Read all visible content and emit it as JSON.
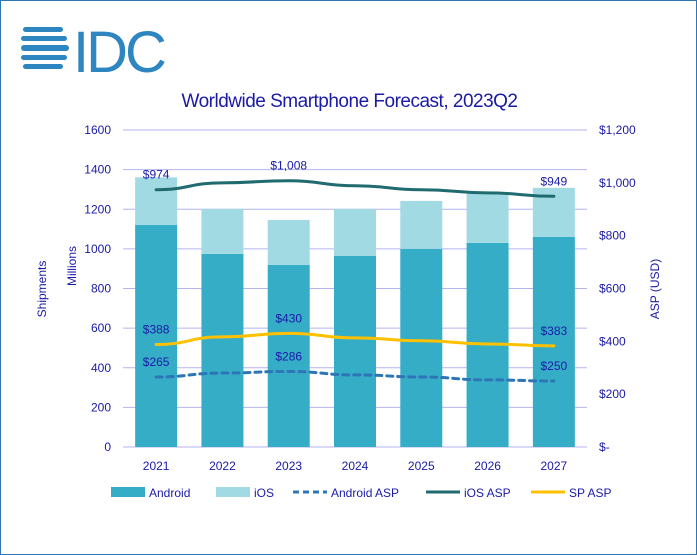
{
  "logo_text": "IDC",
  "chart_data": {
    "type": "bar",
    "title": "Worldwide Smartphone Forecast, 2023Q2",
    "categories": [
      "2021",
      "2022",
      "2023",
      "2024",
      "2025",
      "2026",
      "2027"
    ],
    "ylabel_left": "Shipments",
    "ylabel_left_sub": "Millions",
    "ylabel_right": "ASP (USD)",
    "ylim_left": [
      0,
      1600
    ],
    "yticks_left": [
      "0",
      "200",
      "400",
      "600",
      "800",
      "1000",
      "1200",
      "1400",
      "1600"
    ],
    "ylim_right": [
      0,
      1200
    ],
    "yticks_right": [
      "$-",
      "$200",
      "$400",
      "$600",
      "$800",
      "$1,000",
      "$1,200"
    ],
    "grid": true,
    "legend_placement": "bottom",
    "bar_series": [
      {
        "name": "Android",
        "color": "#36adc7",
        "values": [
          1121,
          975,
          919,
          965,
          1000,
          1030,
          1061
        ]
      },
      {
        "name": "iOS",
        "color": "#a2dae4",
        "values": [
          240,
          227,
          227,
          237,
          242,
          248,
          247
        ]
      }
    ],
    "line_series": [
      {
        "name": "Android ASP",
        "color": "#2e75b6",
        "dashed": true,
        "values": [
          265,
          280,
          286,
          273,
          265,
          254,
          250
        ],
        "labels": [
          "$265",
          "",
          "$286",
          "",
          "",
          "",
          "$250"
        ]
      },
      {
        "name": "iOS ASP",
        "color": "#1f6b70",
        "dashed": false,
        "values": [
          974,
          1000,
          1008,
          989,
          974,
          962,
          949
        ],
        "labels": [
          "$974",
          "",
          "$1,008",
          "",
          "",
          "",
          "$949"
        ]
      },
      {
        "name": "SP ASP",
        "color": "#ffc000",
        "dashed": false,
        "values": [
          388,
          417,
          430,
          413,
          402,
          390,
          383
        ],
        "labels": [
          "$388",
          "",
          "$430",
          "",
          "",
          "",
          "$383"
        ]
      }
    ]
  }
}
